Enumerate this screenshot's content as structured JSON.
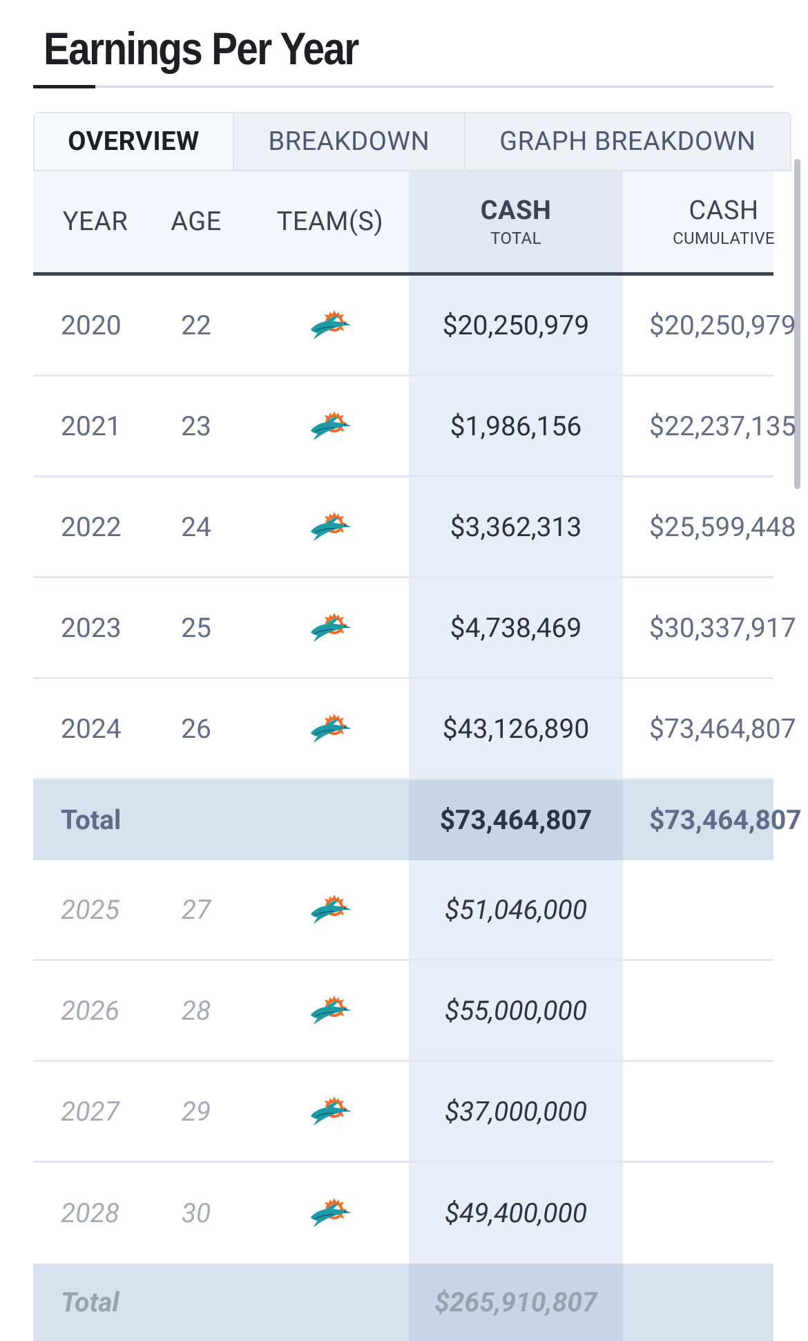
{
  "page": {
    "title": "Earnings Per Year"
  },
  "tabs": [
    {
      "label": "OVERVIEW",
      "active": true
    },
    {
      "label": "BREAKDOWN",
      "active": false
    },
    {
      "label": "GRAPH BREAKDOWN",
      "active": false
    }
  ],
  "table": {
    "headers": {
      "year": "YEAR",
      "age": "AGE",
      "team": "TEAM(S)",
      "cash_main": "CASH",
      "cash_sub": "TOTAL",
      "cum_main": "CASH",
      "cum_sub": "CUMULATIVE"
    },
    "rows": [
      {
        "year": "2020",
        "age": "22",
        "team_icon": "miami-dolphins-logo-icon",
        "cash": "$20,250,979",
        "cumulative": "$20,250,979"
      },
      {
        "year": "2021",
        "age": "23",
        "team_icon": "miami-dolphins-logo-icon",
        "cash": "$1,986,156",
        "cumulative": "$22,237,135"
      },
      {
        "year": "2022",
        "age": "24",
        "team_icon": "miami-dolphins-logo-icon",
        "cash": "$3,362,313",
        "cumulative": "$25,599,448"
      },
      {
        "year": "2023",
        "age": "25",
        "team_icon": "miami-dolphins-logo-icon",
        "cash": "$4,738,469",
        "cumulative": "$30,337,917"
      },
      {
        "year": "2024",
        "age": "26",
        "team_icon": "miami-dolphins-logo-icon",
        "cash": "$43,126,890",
        "cumulative": "$73,464,807"
      }
    ],
    "total": {
      "label": "Total",
      "cash": "$73,464,807",
      "cumulative": "$73,464,807"
    },
    "future_rows": [
      {
        "year": "2025",
        "age": "27",
        "team_icon": "miami-dolphins-logo-icon",
        "cash": "$51,046,000"
      },
      {
        "year": "2026",
        "age": "28",
        "team_icon": "miami-dolphins-logo-icon",
        "cash": "$55,000,000"
      },
      {
        "year": "2027",
        "age": "29",
        "team_icon": "miami-dolphins-logo-icon",
        "cash": "$37,000,000"
      },
      {
        "year": "2028",
        "age": "30",
        "team_icon": "miami-dolphins-logo-icon",
        "cash": "$49,400,000"
      }
    ],
    "future_total": {
      "label": "Total",
      "cash": "$265,910,807"
    }
  },
  "colors": {
    "dolphin_teal": "#1d9aa6",
    "dolphin_orange": "#f26a24"
  }
}
